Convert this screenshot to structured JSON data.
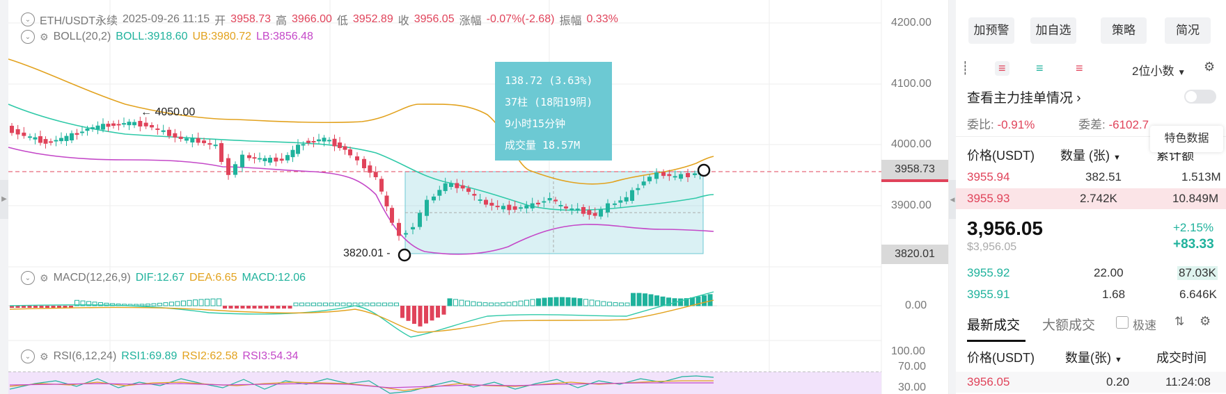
{
  "header": {
    "symbol": "ETH/USDT永续",
    "datetime": "2025-09-26 11:15",
    "open_label": "开",
    "open": "3958.73",
    "high_label": "高",
    "high": "3966.00",
    "low_label": "低",
    "low": "3952.89",
    "close_label": "收",
    "close": "3956.05",
    "change_label": "涨幅",
    "change": "-0.07%(-2.68)",
    "amp_label": "振幅",
    "amp": "0.33%"
  },
  "boll": {
    "name": "BOLL(20,2)",
    "boll": "BOLL:3918.60",
    "ub": "UB:3980.72",
    "lb": "LB:3856.48"
  },
  "macd": {
    "name": "MACD(12,26,9)",
    "dif": "DIF:12.67",
    "dea": "DEA:6.65",
    "macd": "MACD:12.06"
  },
  "rsi": {
    "name": "RSI(6,12,24)",
    "rsi1": "RSI1:69.89",
    "rsi2": "RSI2:62.58",
    "rsi3": "RSI3:54.34"
  },
  "price_axis": [
    "4200.00",
    "4100.00",
    "4000.00",
    "3900.00"
  ],
  "macd_axis": "0.00",
  "rsi_axis": [
    "100.00",
    "70.00",
    "30.00"
  ],
  "price_tags": {
    "current": "3958.73",
    "low": "3820.01"
  },
  "annotations": {
    "high_mark": "4050.00",
    "low_mark": "3820.01"
  },
  "measure_tooltip": {
    "line1": "138.72 (3.63%)",
    "line2": "37柱 (18阳19阴)",
    "line3": "9小时15分钟",
    "line4": "成交量 18.57M"
  },
  "colors": {
    "up": "#1fb29c",
    "down": "#e0435a",
    "boll_ub": "#e2a21e",
    "boll_mid": "#2fc9a8",
    "boll_lb": "#c448c8",
    "measure": "#6cc9d3"
  },
  "right_panel": {
    "buttons": [
      "加预警",
      "加自选",
      "策略",
      "简况"
    ],
    "decimals": "2位小数",
    "main_orders_link": "查看主力挂单情况",
    "ratio_label": "委比:",
    "ratio": "-0.91%",
    "diff_label": "委差:",
    "diff": "-6102.7",
    "special_data": "特色数据",
    "orderbook_headers": [
      "价格(USDT)",
      "数量 (张)",
      "累计额"
    ],
    "asks": [
      {
        "price": "3955.94",
        "qty": "382.51",
        "total": "1.513M"
      },
      {
        "price": "3955.93",
        "qty": "2.742K",
        "total": "10.849M"
      }
    ],
    "last_price": "3,956.05",
    "last_price_sub": "$3,956.05",
    "change_pct": "+2.15%",
    "change_abs": "+83.33",
    "bids": [
      {
        "price": "3955.92",
        "qty": "22.00",
        "total": "87.03K"
      },
      {
        "price": "3955.91",
        "qty": "1.68",
        "total": "6.646K"
      }
    ],
    "trades_tabs": [
      "最新成交",
      "大额成交"
    ],
    "fast_label": "极速",
    "trades_headers": [
      "价格(USDT)",
      "数量(张)",
      "成交时间"
    ],
    "trades": [
      {
        "price": "3956.05",
        "qty": "0.20",
        "time": "11:24:08"
      }
    ]
  }
}
